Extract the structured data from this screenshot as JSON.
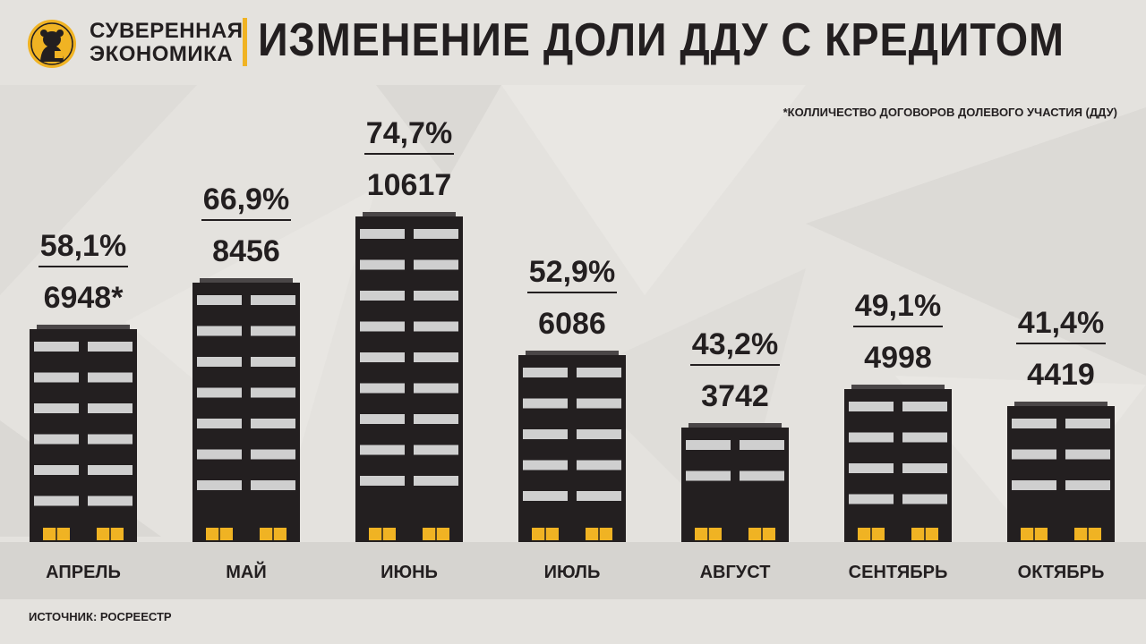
{
  "header": {
    "brand_line1": "СУВЕРЕННАЯ",
    "brand_line2": "ЭКОНОМИКА",
    "title": "ИЗМЕНЕНИЕ ДОЛИ ДДУ С КРЕДИТОМ"
  },
  "footnote": "*КОЛЛИЧЕСТВО ДОГОВОРОВ ДОЛЕВОГО УЧАСТИЯ (ДДУ)",
  "source": "ИСТОЧНИК: РОСРЕЕСТР",
  "colors": {
    "accent": "#f0b323",
    "building": "#231f20",
    "window": "#cfcfcf",
    "text": "#231f20",
    "background": "#e4e2de"
  },
  "logo_icon": "bear-icon",
  "chart_data": {
    "type": "bar",
    "style": "buildings",
    "categories": [
      "АПРЕЛЬ",
      "МАЙ",
      "ИЮНЬ",
      "ИЮЛЬ",
      "АВГУСТ",
      "СЕНТЯБРЬ",
      "ОКТЯБРЬ"
    ],
    "values": [
      6948,
      8456,
      10617,
      6086,
      3742,
      4998,
      4419
    ],
    "value_labels": [
      "6948*",
      "8456",
      "10617",
      "6086",
      "3742",
      "4998",
      "4419"
    ],
    "percent_labels": [
      "58,1%",
      "66,9%",
      "74,7%",
      "52,9%",
      "43,2%",
      "49,1%",
      "41,4%"
    ],
    "percent_values": [
      58.1,
      66.9,
      74.7,
      52.9,
      43.2,
      49.1,
      41.4
    ],
    "title": "ИЗМЕНЕНИЕ ДОЛИ ДДУ С КРЕДИТОМ",
    "grid": false,
    "legend": "none"
  }
}
